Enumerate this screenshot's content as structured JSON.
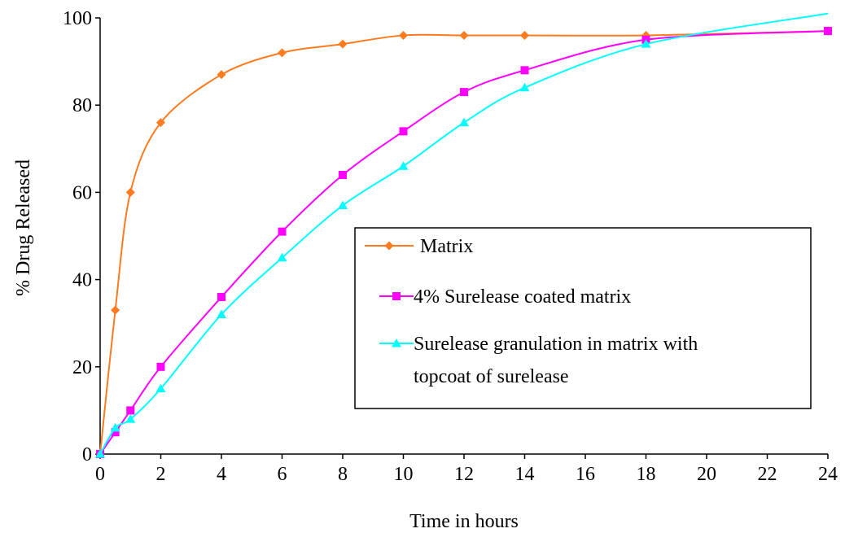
{
  "chart_data": {
    "type": "line",
    "title": "",
    "xlabel": "Time in hours",
    "ylabel": "% Drug Released",
    "xlim": [
      0,
      24
    ],
    "ylim": [
      0,
      100
    ],
    "xticks": [
      0,
      2,
      4,
      6,
      8,
      10,
      12,
      14,
      16,
      18,
      20,
      22,
      24
    ],
    "yticks": [
      0,
      20,
      40,
      60,
      80,
      100
    ],
    "grid": false,
    "legend_position": "center-right",
    "series": [
      {
        "name": "Matrix",
        "color": "#ff7b1f",
        "marker": "diamond",
        "x": [
          0,
          0.5,
          1,
          2,
          4,
          6,
          8,
          10,
          12,
          14,
          18,
          24
        ],
        "y": [
          0,
          33,
          60,
          76,
          87,
          92,
          94,
          96,
          96,
          96,
          96,
          97
        ]
      },
      {
        "name": "4% Surelease coated matrix",
        "color": "#ff00ff",
        "marker": "square",
        "x": [
          0,
          0.5,
          1,
          2,
          4,
          6,
          8,
          10,
          12,
          14,
          18,
          24
        ],
        "y": [
          0,
          5,
          10,
          20,
          36,
          51,
          64,
          74,
          83,
          88,
          95,
          97
        ]
      },
      {
        "name": "Surelease granulation in matrix with topcoat of surelease",
        "color": "#00ffff",
        "marker": "triangle",
        "x": [
          0,
          0.5,
          1,
          2,
          4,
          6,
          8,
          10,
          12,
          14,
          18,
          24
        ],
        "y": [
          0,
          6,
          8,
          15,
          32,
          45,
          57,
          66,
          76,
          84,
          94,
          101
        ]
      }
    ]
  },
  "legend": {
    "line1": "Matrix",
    "line2": "4% Surelease coated matrix",
    "line3a": "Surelease granulation in matrix with",
    "line3b": "topcoat of surelease"
  }
}
